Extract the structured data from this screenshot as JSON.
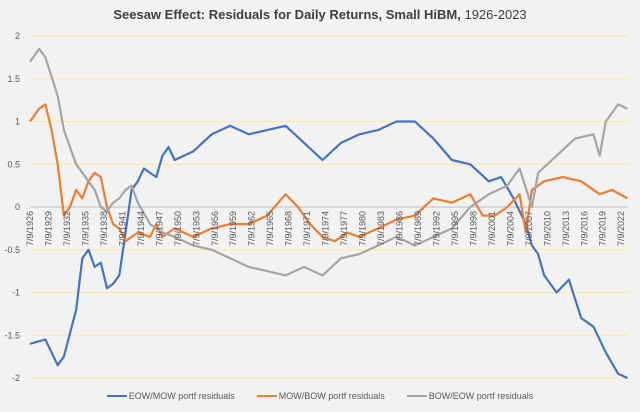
{
  "chart_data": {
    "type": "line",
    "title": "Seesaw Effect: Residuals for Daily Returns, Small HiBM,",
    "title_suffix": "1926-2023",
    "xlabel": "",
    "ylabel": "",
    "ylim": [
      -2,
      2
    ],
    "xlim": [
      1926.5,
      2023.6
    ],
    "yticks": [
      "2",
      "1.5",
      "1",
      "0.5",
      "0",
      "-0.5",
      "-1",
      "-1.5",
      "-2"
    ],
    "ytick_values": [
      2,
      1.5,
      1,
      0.5,
      0,
      -0.5,
      -1,
      -1.5,
      -2
    ],
    "xtick_labels": [
      "7/9/1926",
      "7/9/1929",
      "7/9/1932",
      "7/9/1935",
      "7/9/1938",
      "7/9/1941",
      "7/9/1944",
      "7/9/1947",
      "7/9/1950",
      "7/9/1953",
      "7/9/1956",
      "7/9/1959",
      "7/9/1962",
      "7/9/1965",
      "7/9/1968",
      "7/9/1971",
      "7/9/1974",
      "7/9/1977",
      "7/9/1980",
      "7/9/1983",
      "7/9/1986",
      "7/9/1989",
      "7/9/1992",
      "7/9/1995",
      "7/9/1998",
      "7/9/2001",
      "7/9/2004",
      "7/9/2007",
      "7/9/2010",
      "7/9/2013",
      "7/9/2016",
      "7/9/2019",
      "7/9/2022"
    ],
    "grid": true,
    "grid_color": "#FFE699",
    "legend_position": "bottom",
    "series": [
      {
        "name": "EOW/MOW portf residuals",
        "color": "#4472C4",
        "x": [
          1926.5,
          1929,
          1931,
          1932,
          1934,
          1935,
          1936,
          1937,
          1938,
          1939,
          1940,
          1941,
          1942,
          1943,
          1944,
          1945,
          1947,
          1948,
          1949,
          1950,
          1953,
          1956,
          1959,
          1962,
          1965,
          1968,
          1971,
          1974,
          1977,
          1980,
          1983,
          1986,
          1989,
          1992,
          1995,
          1998,
          2001,
          2003,
          2005,
          2007,
          2008,
          2009,
          2010,
          2012,
          2014,
          2016,
          2018,
          2020,
          2022,
          2023.5
        ],
        "y": [
          -1.6,
          -1.55,
          -1.85,
          -1.75,
          -1.2,
          -0.6,
          -0.5,
          -0.7,
          -0.65,
          -0.95,
          -0.9,
          -0.8,
          -0.3,
          0.2,
          0.3,
          0.45,
          0.35,
          0.6,
          0.7,
          0.55,
          0.65,
          0.85,
          0.95,
          0.85,
          0.9,
          0.95,
          0.75,
          0.55,
          0.75,
          0.85,
          0.9,
          1.0,
          1.0,
          0.8,
          0.55,
          0.5,
          0.3,
          0.35,
          0.1,
          -0.2,
          -0.45,
          -0.55,
          -0.8,
          -1.0,
          -0.85,
          -1.3,
          -1.4,
          -1.7,
          -1.95,
          -2.0
        ]
      },
      {
        "name": "MOW/BOW portf residuals",
        "color": "#ED7D31",
        "x": [
          1926.5,
          1928,
          1929,
          1930,
          1931,
          1932,
          1933,
          1934,
          1935,
          1936,
          1937,
          1938,
          1939,
          1940,
          1941,
          1942,
          1944,
          1946,
          1947,
          1948,
          1950,
          1953,
          1956,
          1959,
          1962,
          1965,
          1968,
          1970,
          1972,
          1974,
          1976,
          1978,
          1980,
          1983,
          1986,
          1989,
          1992,
          1995,
          1998,
          2000,
          2002,
          2004,
          2006,
          2007,
          2008,
          2010,
          2013,
          2016,
          2019,
          2021,
          2023.5
        ],
        "y": [
          1.0,
          1.15,
          1.2,
          0.9,
          0.5,
          -0.1,
          0.0,
          0.2,
          0.1,
          0.3,
          0.4,
          0.35,
          0.0,
          -0.2,
          -0.25,
          -0.4,
          -0.3,
          -0.35,
          -0.2,
          -0.35,
          -0.25,
          -0.35,
          -0.25,
          -0.2,
          -0.2,
          -0.1,
          0.15,
          0.0,
          -0.2,
          -0.35,
          -0.4,
          -0.3,
          -0.35,
          -0.25,
          -0.15,
          -0.1,
          0.1,
          0.05,
          0.15,
          -0.1,
          -0.1,
          0.0,
          0.15,
          -0.3,
          0.2,
          0.3,
          0.35,
          0.3,
          0.15,
          0.2,
          0.1
        ]
      },
      {
        "name": "BOW/EOW portf residuals",
        "color": "#A5A5A5",
        "x": [
          1926.5,
          1928,
          1929,
          1931,
          1932,
          1933,
          1934,
          1936,
          1937,
          1938,
          1939,
          1940,
          1941,
          1942,
          1943,
          1944,
          1946,
          1948,
          1950,
          1953,
          1956,
          1959,
          1962,
          1965,
          1968,
          1971,
          1974,
          1977,
          1980,
          1983,
          1986,
          1989,
          1992,
          1995,
          1998,
          2001,
          2004,
          2006,
          2008,
          2009,
          2012,
          2015,
          2018,
          2019,
          2020,
          2022,
          2023.5
        ],
        "y": [
          1.7,
          1.85,
          1.75,
          1.3,
          0.9,
          0.7,
          0.5,
          0.3,
          0.2,
          0.0,
          -0.05,
          0.05,
          0.1,
          0.2,
          0.25,
          0.05,
          -0.2,
          -0.3,
          -0.35,
          -0.45,
          -0.5,
          -0.6,
          -0.7,
          -0.75,
          -0.8,
          -0.7,
          -0.8,
          -0.6,
          -0.55,
          -0.45,
          -0.35,
          -0.45,
          -0.35,
          -0.25,
          0.0,
          0.15,
          0.25,
          0.45,
          0.0,
          0.4,
          0.6,
          0.8,
          0.85,
          0.6,
          1.0,
          1.2,
          1.15
        ]
      }
    ]
  }
}
